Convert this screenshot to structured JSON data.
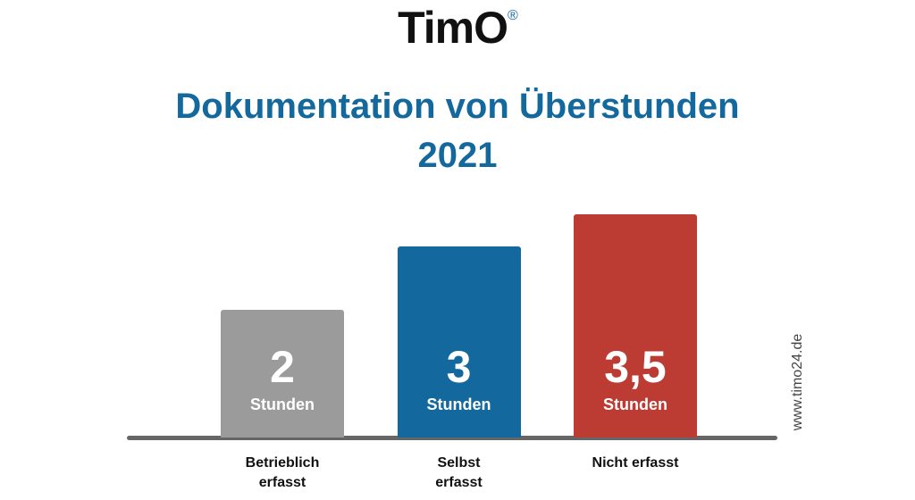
{
  "chart_data": {
    "type": "bar",
    "logo": "TimO",
    "logo_mark": "®",
    "title": "Dokumentation von Überstunden 2021",
    "categories": [
      "Betrieblich erfasst",
      "Selbst erfasst",
      "Nicht erfasst"
    ],
    "values": [
      2,
      3,
      3.5
    ],
    "value_labels": [
      "2",
      "3",
      "3,5"
    ],
    "unit_label": "Stunden",
    "colors": [
      "#9b9b9b",
      "#13699e",
      "#bc3c34"
    ],
    "watermark": "www.timo24.de"
  }
}
